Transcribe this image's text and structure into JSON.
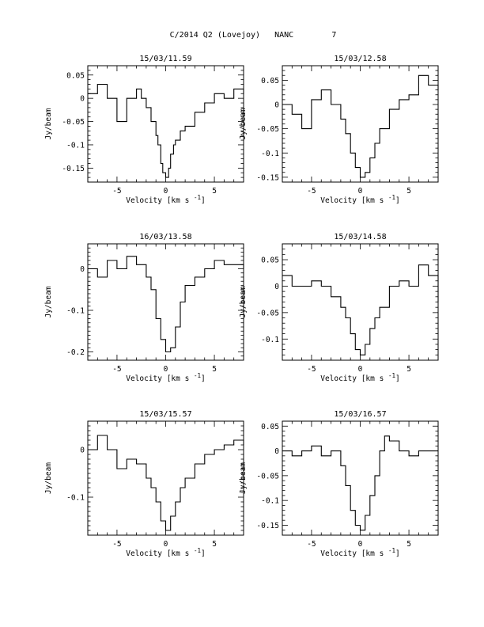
{
  "figure": {
    "title": "C/2014 Q2 (Lovejoy)   NANC        7",
    "ylabel": "Jy/beam",
    "xlabel": "Velocity [km s",
    "xlabel_exp": "-1",
    "xlabel_close": "]"
  },
  "chart_data": [
    {
      "type": "line",
      "title": "15/03/11.59",
      "xlabel": "Velocity [km s-1]",
      "ylabel": "Jy/beam",
      "xlim": [
        -8,
        8
      ],
      "ylim": [
        -0.18,
        0.07
      ],
      "xticks": [
        -5,
        0,
        5
      ],
      "yticks": [
        0.05,
        0,
        -0.05,
        -0.1,
        -0.15
      ],
      "ytick_labels": [
        "0.05",
        "0",
        "-0.05",
        "-0.1",
        "-0.15"
      ],
      "series": [
        {
          "x": [
            -8.0,
            -7.0,
            -6.0,
            -5.0,
            -4.0,
            -3.0,
            -2.5,
            -2.0,
            -1.5,
            -1.0,
            -0.8,
            -0.5,
            -0.3,
            0.0,
            0.3,
            0.5,
            0.8,
            1.0,
            1.5,
            2.0,
            3.0,
            4.0,
            5.0,
            6.0,
            7.0,
            8.0
          ],
          "y": [
            0.01,
            0.03,
            0.0,
            -0.05,
            0.0,
            0.02,
            0.0,
            -0.02,
            -0.05,
            -0.08,
            -0.1,
            -0.14,
            -0.16,
            -0.17,
            -0.15,
            -0.12,
            -0.1,
            -0.09,
            -0.07,
            -0.06,
            -0.03,
            -0.01,
            0.01,
            0.0,
            0.02,
            0.01
          ]
        }
      ]
    },
    {
      "type": "line",
      "title": "15/03/12.58",
      "xlabel": "Velocity [km s-1]",
      "ylabel": "Jy/beam",
      "xlim": [
        -8,
        8
      ],
      "ylim": [
        -0.16,
        0.08
      ],
      "xticks": [
        -5,
        0,
        5
      ],
      "yticks": [
        0.05,
        0,
        -0.05,
        -0.1,
        -0.15
      ],
      "ytick_labels": [
        "0.05",
        "0",
        "-0.05",
        "-0.1",
        "-0.15"
      ],
      "series": [
        {
          "x": [
            -8.0,
            -7.0,
            -6.0,
            -5.0,
            -4.0,
            -3.0,
            -2.0,
            -1.5,
            -1.0,
            -0.5,
            0.0,
            0.5,
            1.0,
            1.5,
            2.0,
            3.0,
            4.0,
            5.0,
            6.0,
            7.0,
            8.0
          ],
          "y": [
            0.0,
            -0.02,
            -0.05,
            0.01,
            0.03,
            0.0,
            -0.03,
            -0.06,
            -0.1,
            -0.13,
            -0.15,
            -0.14,
            -0.11,
            -0.08,
            -0.05,
            -0.01,
            0.01,
            0.02,
            0.06,
            0.04,
            0.03
          ]
        }
      ]
    },
    {
      "type": "line",
      "title": "16/03/13.58",
      "xlabel": "Velocity [km s-1]",
      "ylabel": "Jy/beam",
      "xlim": [
        -8,
        8
      ],
      "ylim": [
        -0.22,
        0.06
      ],
      "xticks": [
        -5,
        0,
        5
      ],
      "yticks": [
        0,
        -0.1,
        -0.2
      ],
      "ytick_labels": [
        "0",
        "-0.1",
        "-0.2"
      ],
      "series": [
        {
          "x": [
            -8.0,
            -7.0,
            -6.0,
            -5.0,
            -4.0,
            -3.0,
            -2.0,
            -1.5,
            -1.0,
            -0.5,
            0.0,
            0.5,
            1.0,
            1.5,
            2.0,
            3.0,
            4.0,
            5.0,
            6.0,
            7.0,
            8.0
          ],
          "y": [
            0.0,
            -0.02,
            0.02,
            0.0,
            0.03,
            0.01,
            -0.02,
            -0.05,
            -0.12,
            -0.17,
            -0.2,
            -0.19,
            -0.14,
            -0.08,
            -0.04,
            -0.02,
            0.0,
            0.02,
            0.01,
            0.01,
            0.0
          ]
        }
      ]
    },
    {
      "type": "line",
      "title": "15/03/14.58",
      "xlabel": "Velocity [km s-1]",
      "ylabel": "Jy/beam",
      "xlim": [
        -8,
        8
      ],
      "ylim": [
        -0.14,
        0.08
      ],
      "xticks": [
        -5,
        0,
        5
      ],
      "yticks": [
        0.05,
        0,
        -0.05,
        -0.1
      ],
      "ytick_labels": [
        "0.05",
        "0",
        "-0.05",
        "-0.1"
      ],
      "series": [
        {
          "x": [
            -8.0,
            -7.0,
            -6.0,
            -5.0,
            -4.0,
            -3.0,
            -2.0,
            -1.5,
            -1.0,
            -0.5,
            0.0,
            0.5,
            1.0,
            1.5,
            2.0,
            3.0,
            4.0,
            5.0,
            6.0,
            7.0,
            8.0
          ],
          "y": [
            0.02,
            0.0,
            0.0,
            0.01,
            0.0,
            -0.02,
            -0.04,
            -0.06,
            -0.09,
            -0.12,
            -0.13,
            -0.11,
            -0.08,
            -0.06,
            -0.04,
            0.0,
            0.01,
            0.0,
            0.04,
            0.02,
            -0.03
          ]
        }
      ]
    },
    {
      "type": "line",
      "title": "15/03/15.57",
      "xlabel": "Velocity [km s-1]",
      "ylabel": "Jy/beam",
      "xlim": [
        -8,
        8
      ],
      "ylim": [
        -0.18,
        0.06
      ],
      "xticks": [
        -5,
        0,
        5
      ],
      "yticks": [
        0,
        -0.1
      ],
      "ytick_labels": [
        "0",
        "-0.1"
      ],
      "series": [
        {
          "x": [
            -8.0,
            -7.0,
            -6.0,
            -5.0,
            -4.0,
            -3.0,
            -2.0,
            -1.5,
            -1.0,
            -0.5,
            0.0,
            0.5,
            1.0,
            1.5,
            2.0,
            3.0,
            4.0,
            5.0,
            6.0,
            7.0,
            8.0
          ],
          "y": [
            0.0,
            0.03,
            0.0,
            -0.04,
            -0.02,
            -0.03,
            -0.06,
            -0.08,
            -0.11,
            -0.15,
            -0.17,
            -0.14,
            -0.11,
            -0.08,
            -0.06,
            -0.03,
            -0.01,
            0.0,
            0.01,
            0.02,
            0.01
          ]
        }
      ]
    },
    {
      "type": "line",
      "title": "15/03/16.57",
      "xlabel": "Velocity [km s-1]",
      "ylabel": "Jy/beam",
      "xlim": [
        -8,
        8
      ],
      "ylim": [
        -0.17,
        0.06
      ],
      "xticks": [
        -5,
        0,
        5
      ],
      "yticks": [
        0.05,
        0,
        -0.05,
        -0.1,
        -0.15
      ],
      "ytick_labels": [
        "0.05",
        "0",
        "-0.05",
        "-0.1",
        "-0.15"
      ],
      "series": [
        {
          "x": [
            -8.0,
            -7.0,
            -6.0,
            -5.0,
            -4.0,
            -3.0,
            -2.0,
            -1.5,
            -1.0,
            -0.5,
            0.0,
            0.5,
            1.0,
            1.5,
            2.0,
            2.5,
            3.0,
            4.0,
            5.0,
            6.0,
            7.0,
            8.0
          ],
          "y": [
            0.0,
            -0.01,
            0.0,
            0.01,
            -0.01,
            0.0,
            -0.03,
            -0.07,
            -0.12,
            -0.15,
            -0.16,
            -0.13,
            -0.09,
            -0.05,
            0.0,
            0.03,
            0.02,
            0.0,
            -0.01,
            0.0,
            0.0,
            0.0
          ]
        }
      ]
    }
  ]
}
